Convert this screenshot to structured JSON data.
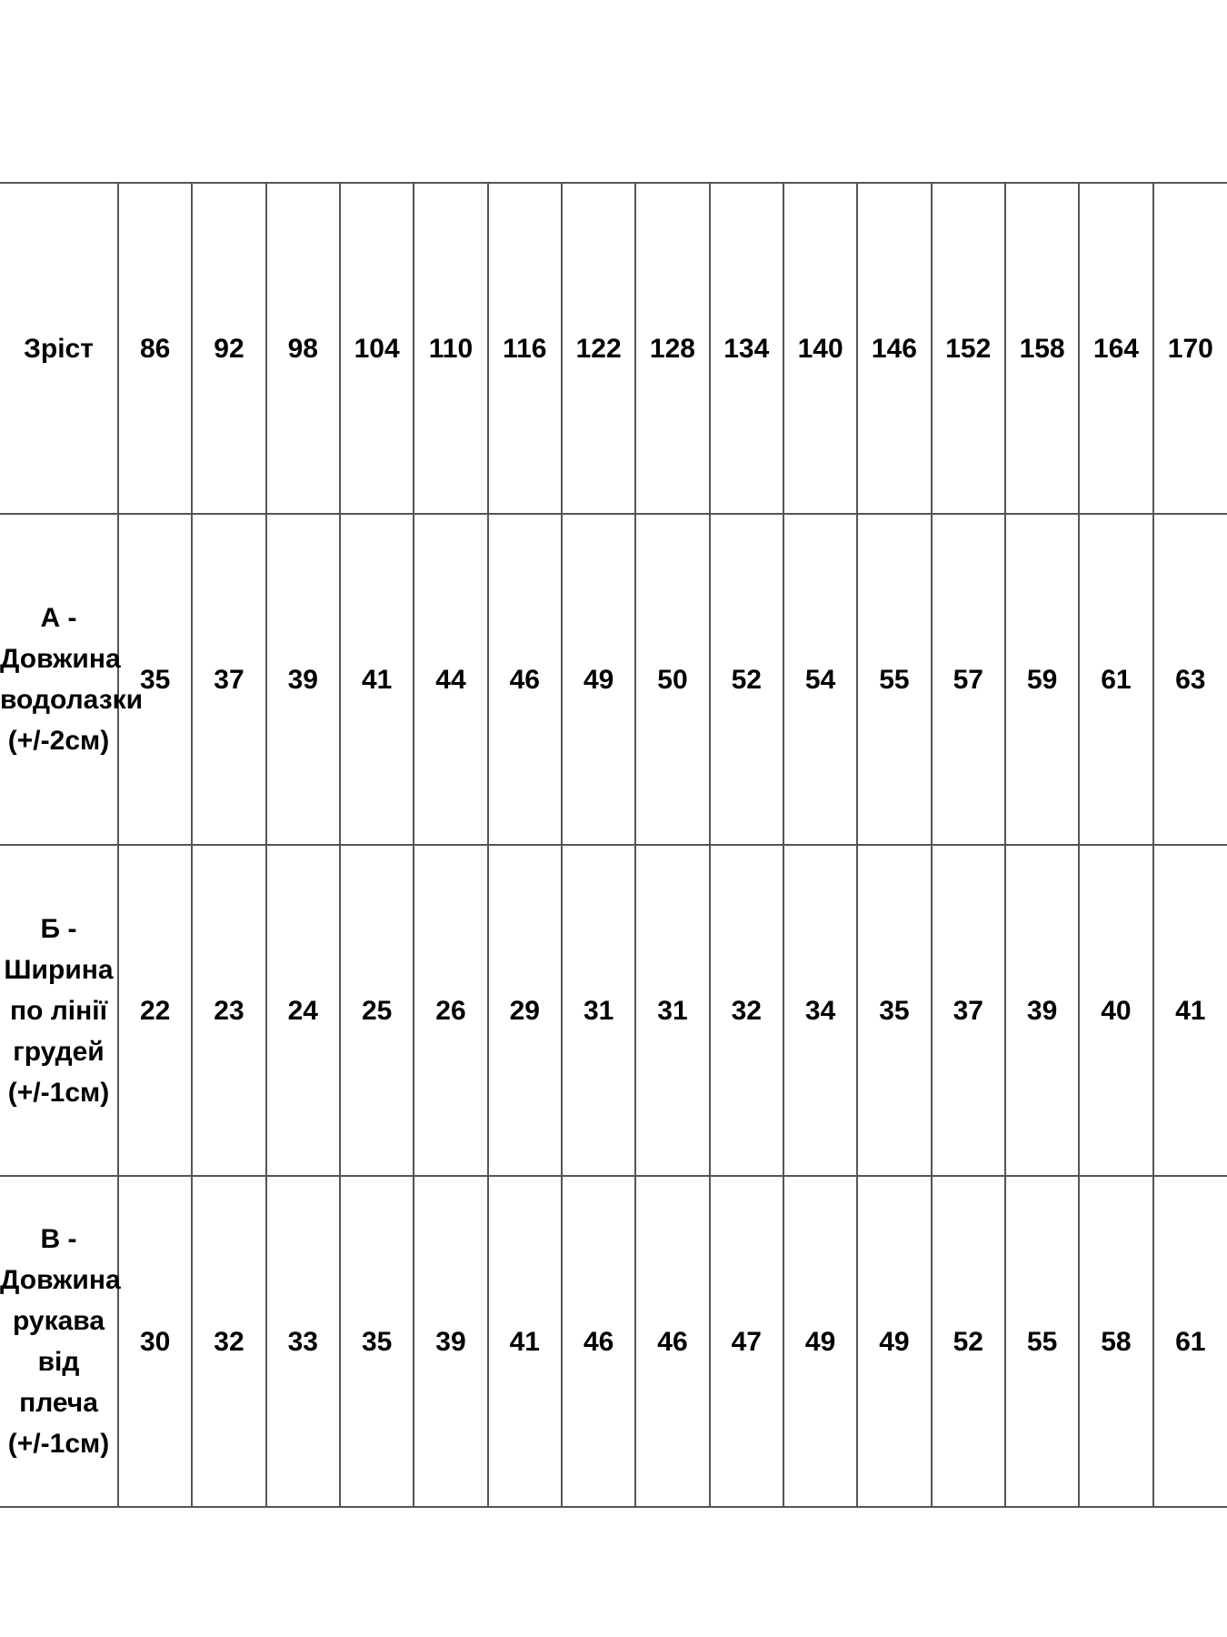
{
  "rows": [
    {
      "label": "Зріст",
      "values": [
        "86",
        "92",
        "98",
        "104",
        "110",
        "116",
        "122",
        "128",
        "134",
        "140",
        "146",
        "152",
        "158",
        "164",
        "170"
      ]
    },
    {
      "label": "А - Довжина водолазки (+/-2см)",
      "values": [
        "35",
        "37",
        "39",
        "41",
        "44",
        "46",
        "49",
        "50",
        "52",
        "54",
        "55",
        "57",
        "59",
        "61",
        "63"
      ]
    },
    {
      "label": "Б - Ширина по лінії грудей (+/-1см)",
      "values": [
        "22",
        "23",
        "24",
        "25",
        "26",
        "29",
        "31",
        "31",
        "32",
        "34",
        "35",
        "37",
        "39",
        "40",
        "41"
      ]
    },
    {
      "label": "В - Довжина рукава від плеча (+/-1см)",
      "values": [
        "30",
        "32",
        "33",
        "35",
        "39",
        "41",
        "46",
        "46",
        "47",
        "49",
        "49",
        "52",
        "55",
        "58",
        "61"
      ]
    }
  ]
}
